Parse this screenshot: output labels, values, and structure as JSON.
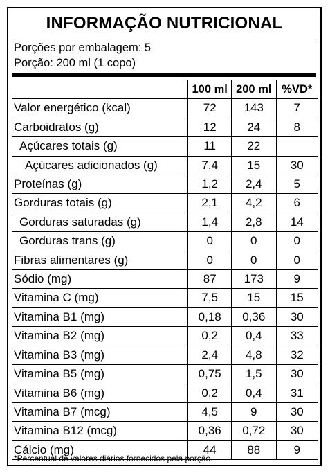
{
  "title": "INFORMAÇÃO NUTRICIONAL",
  "servings_per_package": "Porções por embalagem: 5",
  "serving_size": "Porção: 200 ml (1 copo)",
  "columns": [
    "",
    "100 ml",
    "200 ml",
    "%VD*"
  ],
  "rows": [
    {
      "name": "Valor energético (kcal)",
      "indent": 0,
      "v100": "72",
      "v200": "143",
      "vd": "7"
    },
    {
      "name": "Carboidratos (g)",
      "indent": 0,
      "v100": "12",
      "v200": "24",
      "vd": "8"
    },
    {
      "name": "Açúcares totais (g)",
      "indent": 1,
      "v100": "11",
      "v200": "22",
      "vd": ""
    },
    {
      "name": "Açúcares adicionados (g)",
      "indent": 2,
      "v100": "7,4",
      "v200": "15",
      "vd": "30"
    },
    {
      "name": "Proteínas (g)",
      "indent": 0,
      "v100": "1,2",
      "v200": "2,4",
      "vd": "5"
    },
    {
      "name": "Gorduras totais (g)",
      "indent": 0,
      "v100": "2,1",
      "v200": "4,2",
      "vd": "6"
    },
    {
      "name": "Gorduras saturadas (g)",
      "indent": 1,
      "v100": "1,4",
      "v200": "2,8",
      "vd": "14"
    },
    {
      "name": "Gorduras trans (g)",
      "indent": 1,
      "v100": "0",
      "v200": "0",
      "vd": "0"
    },
    {
      "name": "Fibras alimentares (g)",
      "indent": 0,
      "v100": "0",
      "v200": "0",
      "vd": "0"
    },
    {
      "name": "Sódio (mg)",
      "indent": 0,
      "v100": "87",
      "v200": "173",
      "vd": "9"
    },
    {
      "name": "Vitamina C (mg)",
      "indent": 0,
      "v100": "7,5",
      "v200": "15",
      "vd": "15"
    },
    {
      "name": "Vitamina B1 (mg)",
      "indent": 0,
      "v100": "0,18",
      "v200": "0,36",
      "vd": "30"
    },
    {
      "name": "Vitamina B2 (mg)",
      "indent": 0,
      "v100": "0,2",
      "v200": "0,4",
      "vd": "33"
    },
    {
      "name": "Vitamina B3 (mg)",
      "indent": 0,
      "v100": "2,4",
      "v200": "4,8",
      "vd": "32"
    },
    {
      "name": "Vitamina B5 (mg)",
      "indent": 0,
      "v100": "0,75",
      "v200": "1,5",
      "vd": "30"
    },
    {
      "name": "Vitamina B6 (mg)",
      "indent": 0,
      "v100": "0,2",
      "v200": "0,4",
      "vd": "31"
    },
    {
      "name": "Vitamina B7 (mcg)",
      "indent": 0,
      "v100": "4,5",
      "v200": "9",
      "vd": "30"
    },
    {
      "name": "Vitamina B12 (mcg)",
      "indent": 0,
      "v100": "0,36",
      "v200": "0,72",
      "vd": "30"
    },
    {
      "name": "Cálcio (mg)",
      "indent": 0,
      "v100": "44",
      "v200": "88",
      "vd": "9"
    }
  ],
  "footnote": "*Percentual de valores diários fornecidos pela porção."
}
